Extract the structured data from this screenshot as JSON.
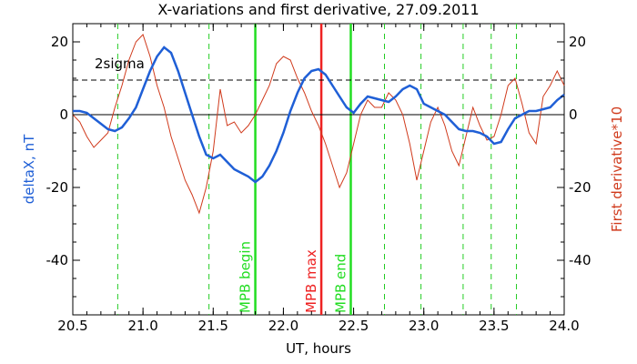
{
  "chart_data": {
    "type": "line",
    "title": "X-variations and first derivative, 27.09.2011",
    "xlabel": "UT, hours",
    "ylabel_left": "deltaX, nT",
    "ylabel_right": "First derivative*10",
    "xlim": [
      20.5,
      24.0
    ],
    "ylim": [
      -55,
      25
    ],
    "xticks": [
      "20.5",
      "21.0",
      "21.5",
      "22.0",
      "22.5",
      "23.0",
      "23.5",
      "24.0"
    ],
    "yticks_left": [
      "20",
      "0",
      "-20",
      "-40"
    ],
    "yticks_right": [
      "20",
      "0",
      "-20",
      "-40"
    ],
    "colors": {
      "deltaX": "#1f5fd6",
      "derivative": "#d03a1c",
      "mpb_begin_end": "#22dd22",
      "mpb_max": "#ee2222",
      "dashed_green": "#22cc22"
    },
    "reference_lines": {
      "two_sigma_level": 9.5,
      "two_sigma_label": "2sigma",
      "zero_level": 0
    },
    "series": [
      {
        "name": "deltaX, nT",
        "axis": "left",
        "x": [
          20.5,
          20.55,
          20.6,
          20.65,
          20.7,
          20.75,
          20.8,
          20.85,
          20.9,
          20.95,
          21.0,
          21.05,
          21.1,
          21.15,
          21.2,
          21.25,
          21.3,
          21.35,
          21.4,
          21.45,
          21.5,
          21.55,
          21.6,
          21.65,
          21.7,
          21.75,
          21.8,
          21.85,
          21.9,
          21.95,
          22.0,
          22.05,
          22.1,
          22.15,
          22.2,
          22.25,
          22.3,
          22.35,
          22.4,
          22.45,
          22.5,
          22.55,
          22.6,
          22.65,
          22.7,
          22.75,
          22.8,
          22.85,
          22.9,
          22.95,
          23.0,
          23.05,
          23.1,
          23.15,
          23.2,
          23.25,
          23.3,
          23.35,
          23.4,
          23.45,
          23.5,
          23.55,
          23.6,
          23.65,
          23.7,
          23.75,
          23.8,
          23.85,
          23.9,
          23.95,
          24.0
        ],
        "y": [
          1,
          1,
          0.5,
          -1,
          -2.5,
          -4,
          -4.5,
          -3.5,
          -1,
          2,
          7,
          12,
          16,
          18.5,
          17,
          12,
          6,
          0,
          -6,
          -11,
          -12,
          -11,
          -13,
          -15,
          -16,
          -17,
          -18.5,
          -17,
          -14,
          -10,
          -5,
          1,
          6,
          10,
          12,
          12.5,
          11,
          8,
          5,
          2,
          0.5,
          3,
          5,
          4.5,
          4,
          3.5,
          5,
          7,
          8,
          7,
          3,
          2,
          1,
          0,
          -2,
          -4,
          -4.5,
          -4.5,
          -5,
          -6,
          -8,
          -7.5,
          -4,
          -1,
          0,
          1,
          1,
          1.5,
          2,
          4,
          5.5
        ]
      },
      {
        "name": "First derivative*10",
        "axis": "right",
        "x": [
          20.5,
          20.55,
          20.6,
          20.65,
          20.7,
          20.75,
          20.8,
          20.85,
          20.9,
          20.95,
          21.0,
          21.05,
          21.1,
          21.15,
          21.2,
          21.25,
          21.3,
          21.35,
          21.4,
          21.45,
          21.5,
          21.55,
          21.6,
          21.65,
          21.7,
          21.75,
          21.8,
          21.85,
          21.9,
          21.95,
          22.0,
          22.05,
          22.1,
          22.15,
          22.2,
          22.25,
          22.3,
          22.35,
          22.4,
          22.45,
          22.5,
          22.55,
          22.6,
          22.65,
          22.7,
          22.75,
          22.8,
          22.85,
          22.9,
          22.95,
          23.0,
          23.05,
          23.1,
          23.15,
          23.2,
          23.25,
          23.3,
          23.35,
          23.4,
          23.45,
          23.5,
          23.55,
          23.6,
          23.65,
          23.7,
          23.75,
          23.8,
          23.85,
          23.9,
          23.95,
          24.0
        ],
        "y": [
          0,
          -2,
          -6,
          -9,
          -7,
          -5,
          2,
          8,
          15,
          20,
          22,
          16,
          8,
          2,
          -6,
          -12,
          -18,
          -22,
          -27,
          -20,
          -10,
          7,
          -3,
          -2,
          -5,
          -3,
          0,
          4,
          8,
          14,
          16,
          15,
          10,
          6,
          1,
          -3,
          -8,
          -14,
          -20,
          -16,
          -8,
          0,
          4,
          2,
          2,
          6,
          4,
          0,
          -8,
          -18,
          -10,
          -2,
          2,
          -3,
          -10,
          -14,
          -6,
          2,
          -3,
          -7,
          -6,
          0,
          8,
          10,
          3,
          -5,
          -8,
          5,
          8,
          12,
          8
        ]
      }
    ],
    "vertical_markers": [
      {
        "x": 20.82,
        "style": "dashed-green",
        "label": ""
      },
      {
        "x": 21.47,
        "style": "dashed-green",
        "label": ""
      },
      {
        "x": 21.8,
        "style": "solid-green",
        "label": "MPB begin"
      },
      {
        "x": 22.27,
        "style": "solid-red",
        "label": "MPB max"
      },
      {
        "x": 22.48,
        "style": "solid-green",
        "label": "MPB end"
      },
      {
        "x": 22.72,
        "style": "dashed-green",
        "label": ""
      },
      {
        "x": 22.98,
        "style": "dashed-green",
        "label": ""
      },
      {
        "x": 23.28,
        "style": "dashed-green",
        "label": ""
      },
      {
        "x": 23.48,
        "style": "dashed-green",
        "label": ""
      },
      {
        "x": 23.66,
        "style": "dashed-green",
        "label": ""
      }
    ]
  }
}
